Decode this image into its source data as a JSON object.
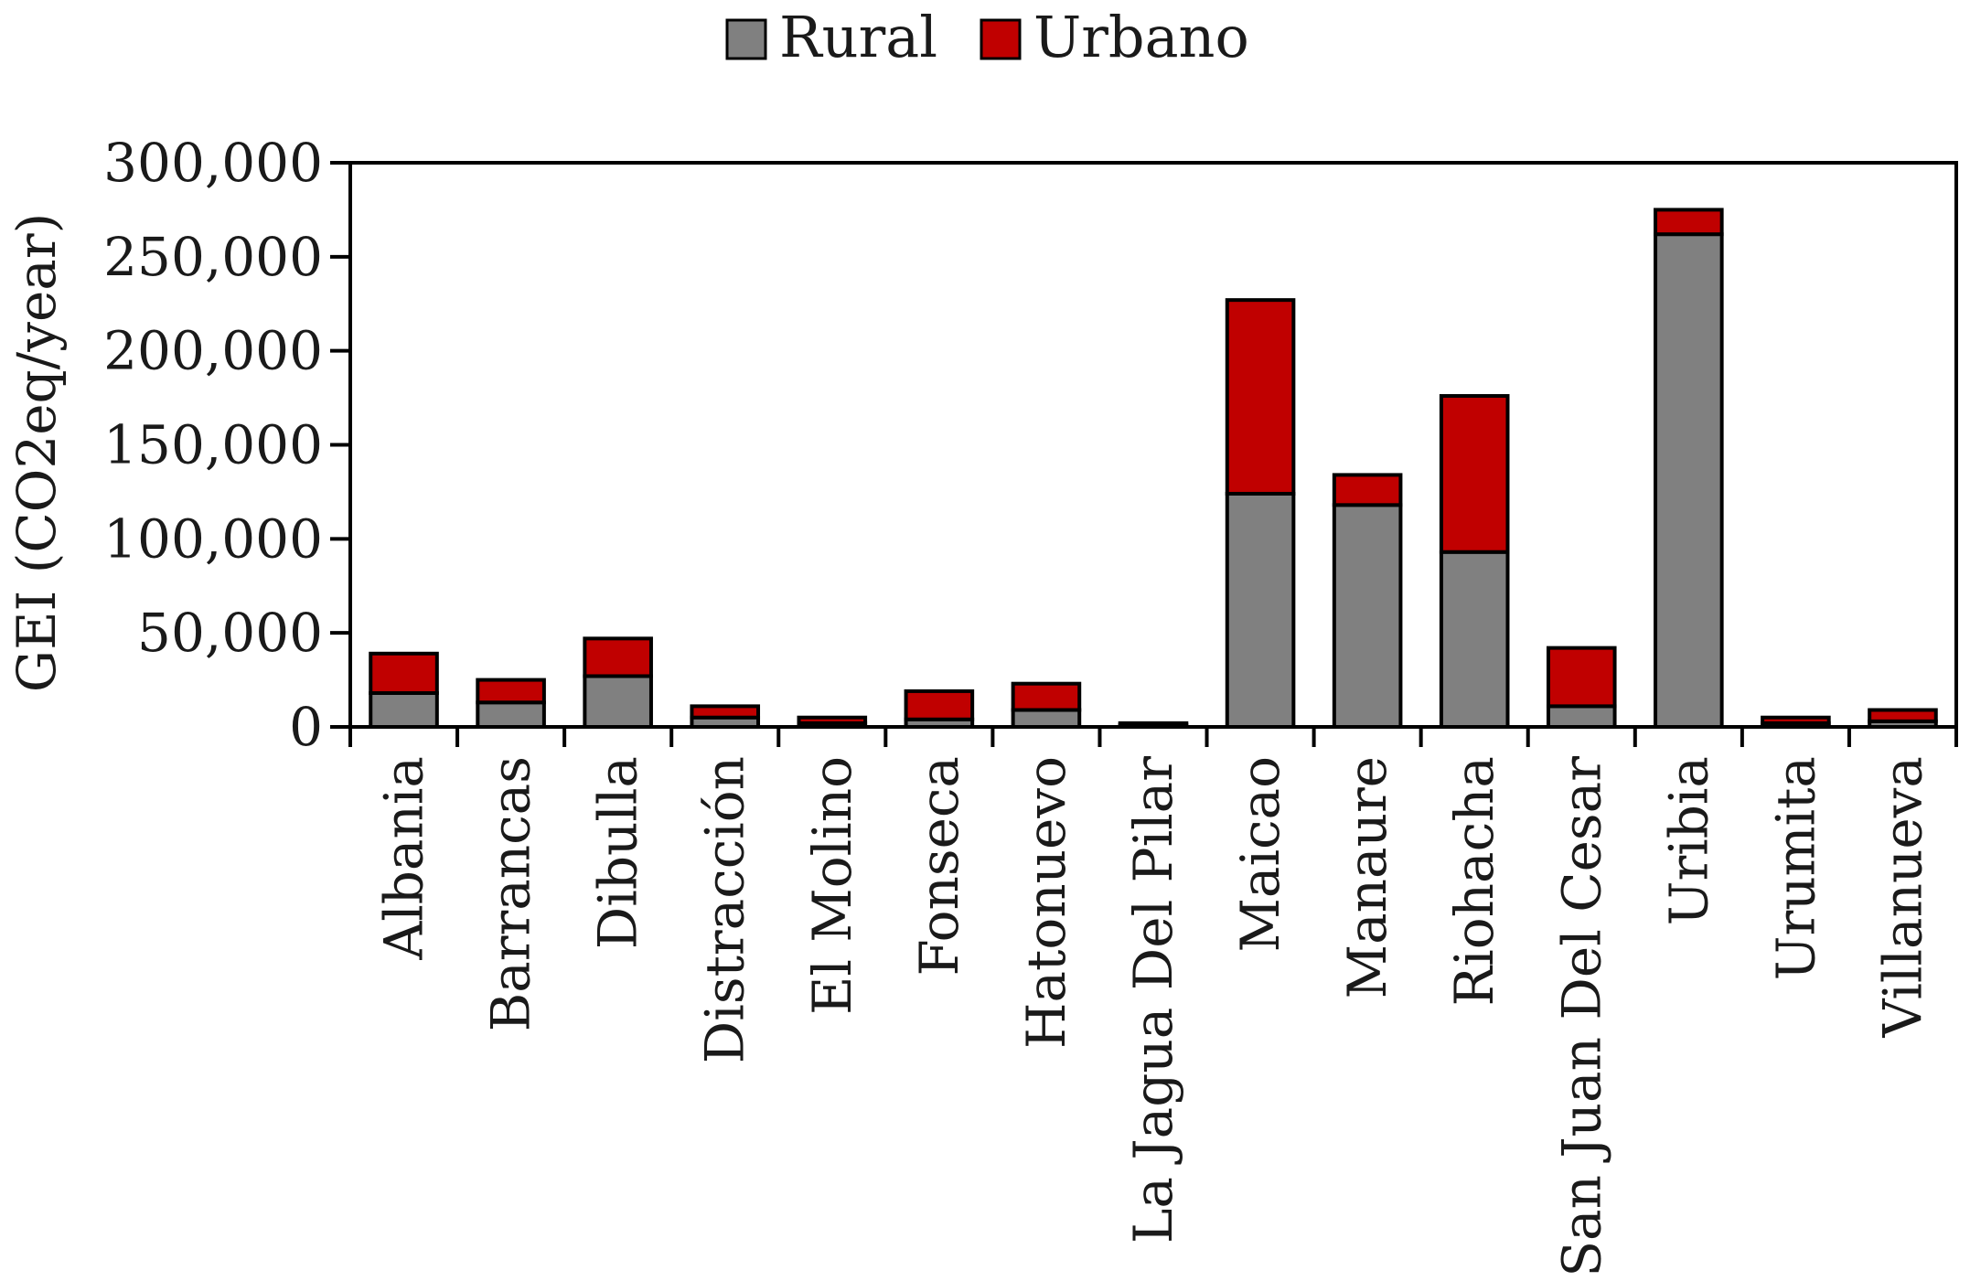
{
  "chart_data": {
    "type": "bar",
    "stacked": true,
    "categories": [
      "Albania",
      "Barrancas",
      "Dibulla",
      "Distracción",
      "El Molino",
      "Fonseca",
      "Hatonuevo",
      "La Jagua Del Pilar",
      "Maicao",
      "Manaure",
      "Riohacha",
      "San Juan Del Cesar",
      "Uribia",
      "Urumita",
      "Villanueva"
    ],
    "series": [
      {
        "name": "Rural",
        "color": "#808080",
        "values": [
          18000,
          13000,
          27000,
          5000,
          2000,
          4000,
          9000,
          1000,
          124000,
          118000,
          93000,
          11000,
          262000,
          2000,
          3000
        ]
      },
      {
        "name": "Urbano",
        "color": "#c00000",
        "values": [
          21000,
          12000,
          20000,
          6000,
          3000,
          15000,
          14000,
          1000,
          103000,
          16000,
          83000,
          31000,
          13000,
          3000,
          6000
        ]
      }
    ],
    "ylabel": "GEI (CO2eq/year)",
    "xlabel": "",
    "ylim": [
      0,
      300000
    ],
    "yticks": [
      "0",
      "50,000",
      "100,000",
      "150,000",
      "200,000",
      "250,000",
      "300,000"
    ],
    "legend_position": "top-center",
    "grid": false
  }
}
